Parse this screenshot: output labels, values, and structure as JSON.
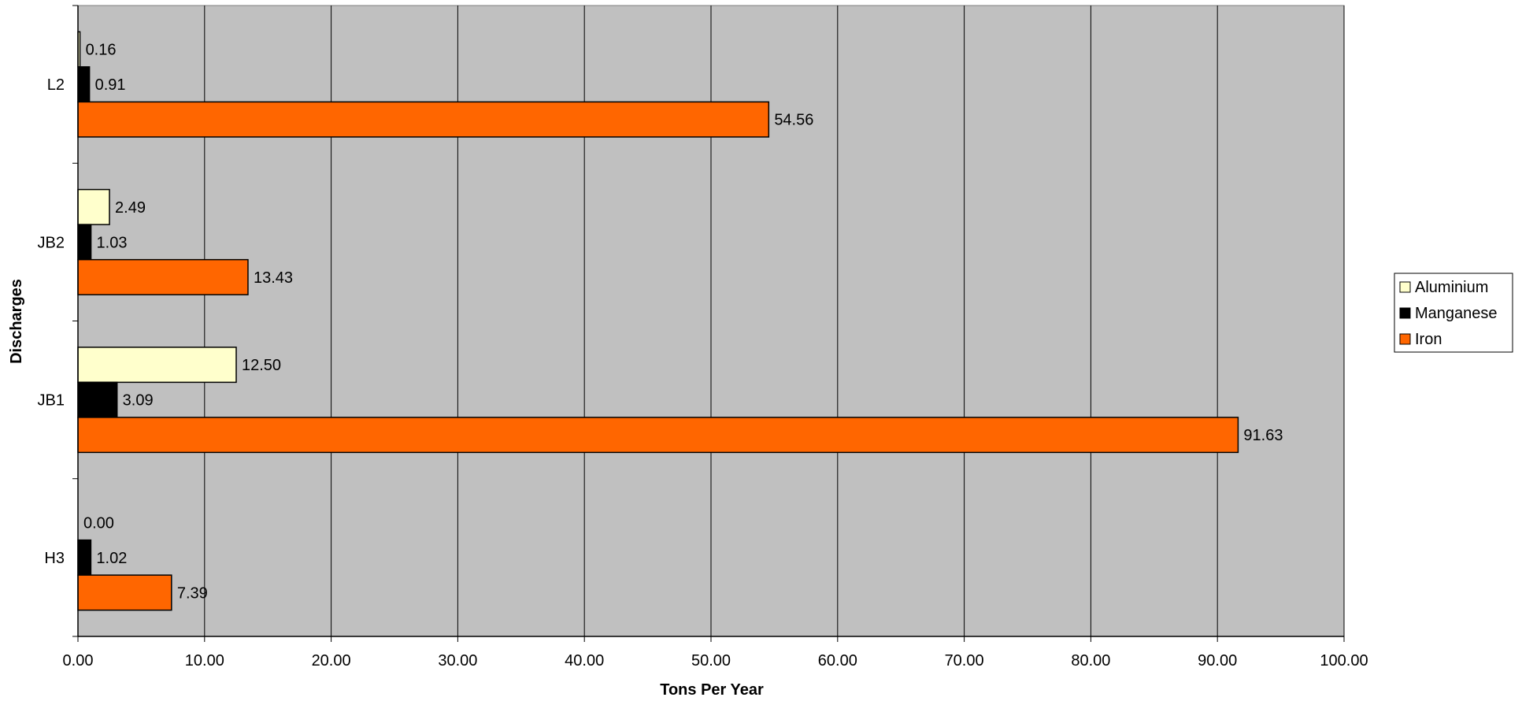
{
  "chart_data": {
    "type": "bar",
    "orientation": "horizontal",
    "title": "",
    "xlabel": "Tons Per Year",
    "ylabel": "Discharges",
    "xlim": [
      0,
      100
    ],
    "x_ticks": [
      "0.00",
      "10.00",
      "20.00",
      "30.00",
      "40.00",
      "50.00",
      "60.00",
      "70.00",
      "80.00",
      "90.00",
      "100.00"
    ],
    "categories": [
      "L2",
      "JB2",
      "JB1",
      "H3"
    ],
    "series": [
      {
        "name": "Aluminium",
        "color": "#ffffcc",
        "values": [
          0.16,
          2.49,
          12.5,
          0.0
        ],
        "labels": [
          "0.16",
          "2.49",
          "12.50",
          "0.00"
        ]
      },
      {
        "name": "Manganese",
        "color": "#000000",
        "values": [
          0.91,
          1.03,
          3.09,
          1.02
        ],
        "labels": [
          "0.91",
          "1.03",
          "3.09",
          "1.02"
        ]
      },
      {
        "name": "Iron",
        "color": "#ff6600",
        "values": [
          54.56,
          13.43,
          91.63,
          7.39
        ],
        "labels": [
          "54.56",
          "13.43",
          "91.63",
          "7.39"
        ]
      }
    ],
    "grid": true,
    "plot_background": "#c0c0c0",
    "legend_position": "right"
  }
}
